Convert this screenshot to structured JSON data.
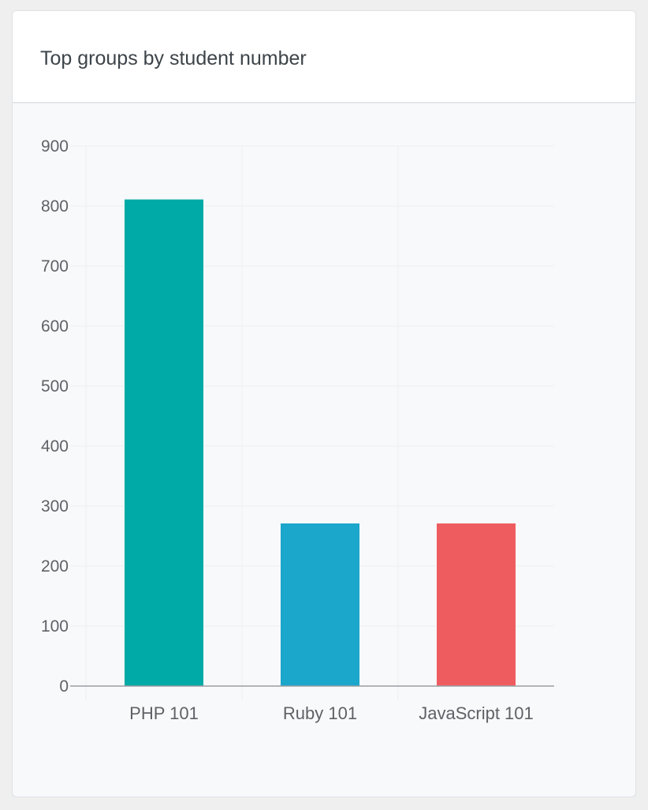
{
  "card": {
    "title": "Top groups by student number"
  },
  "chart_data": {
    "type": "bar",
    "title": "Top groups by student number",
    "categories": [
      "PHP 101",
      "Ruby 101",
      "JavaScript 101"
    ],
    "values": [
      811,
      271,
      271
    ],
    "colors": [
      "#00aaa6",
      "#1ba6cb",
      "#ef5c5f"
    ],
    "ylim": [
      0,
      900
    ],
    "yticks": [
      0,
      100,
      200,
      300,
      400,
      500,
      600,
      700,
      800,
      900
    ],
    "xlabel": "",
    "ylabel": "",
    "grid": true,
    "legend": "none"
  },
  "colors": {
    "gridline": "#eceef1",
    "axis": "#9a9ea3",
    "tick_label": "#5e6266"
  }
}
